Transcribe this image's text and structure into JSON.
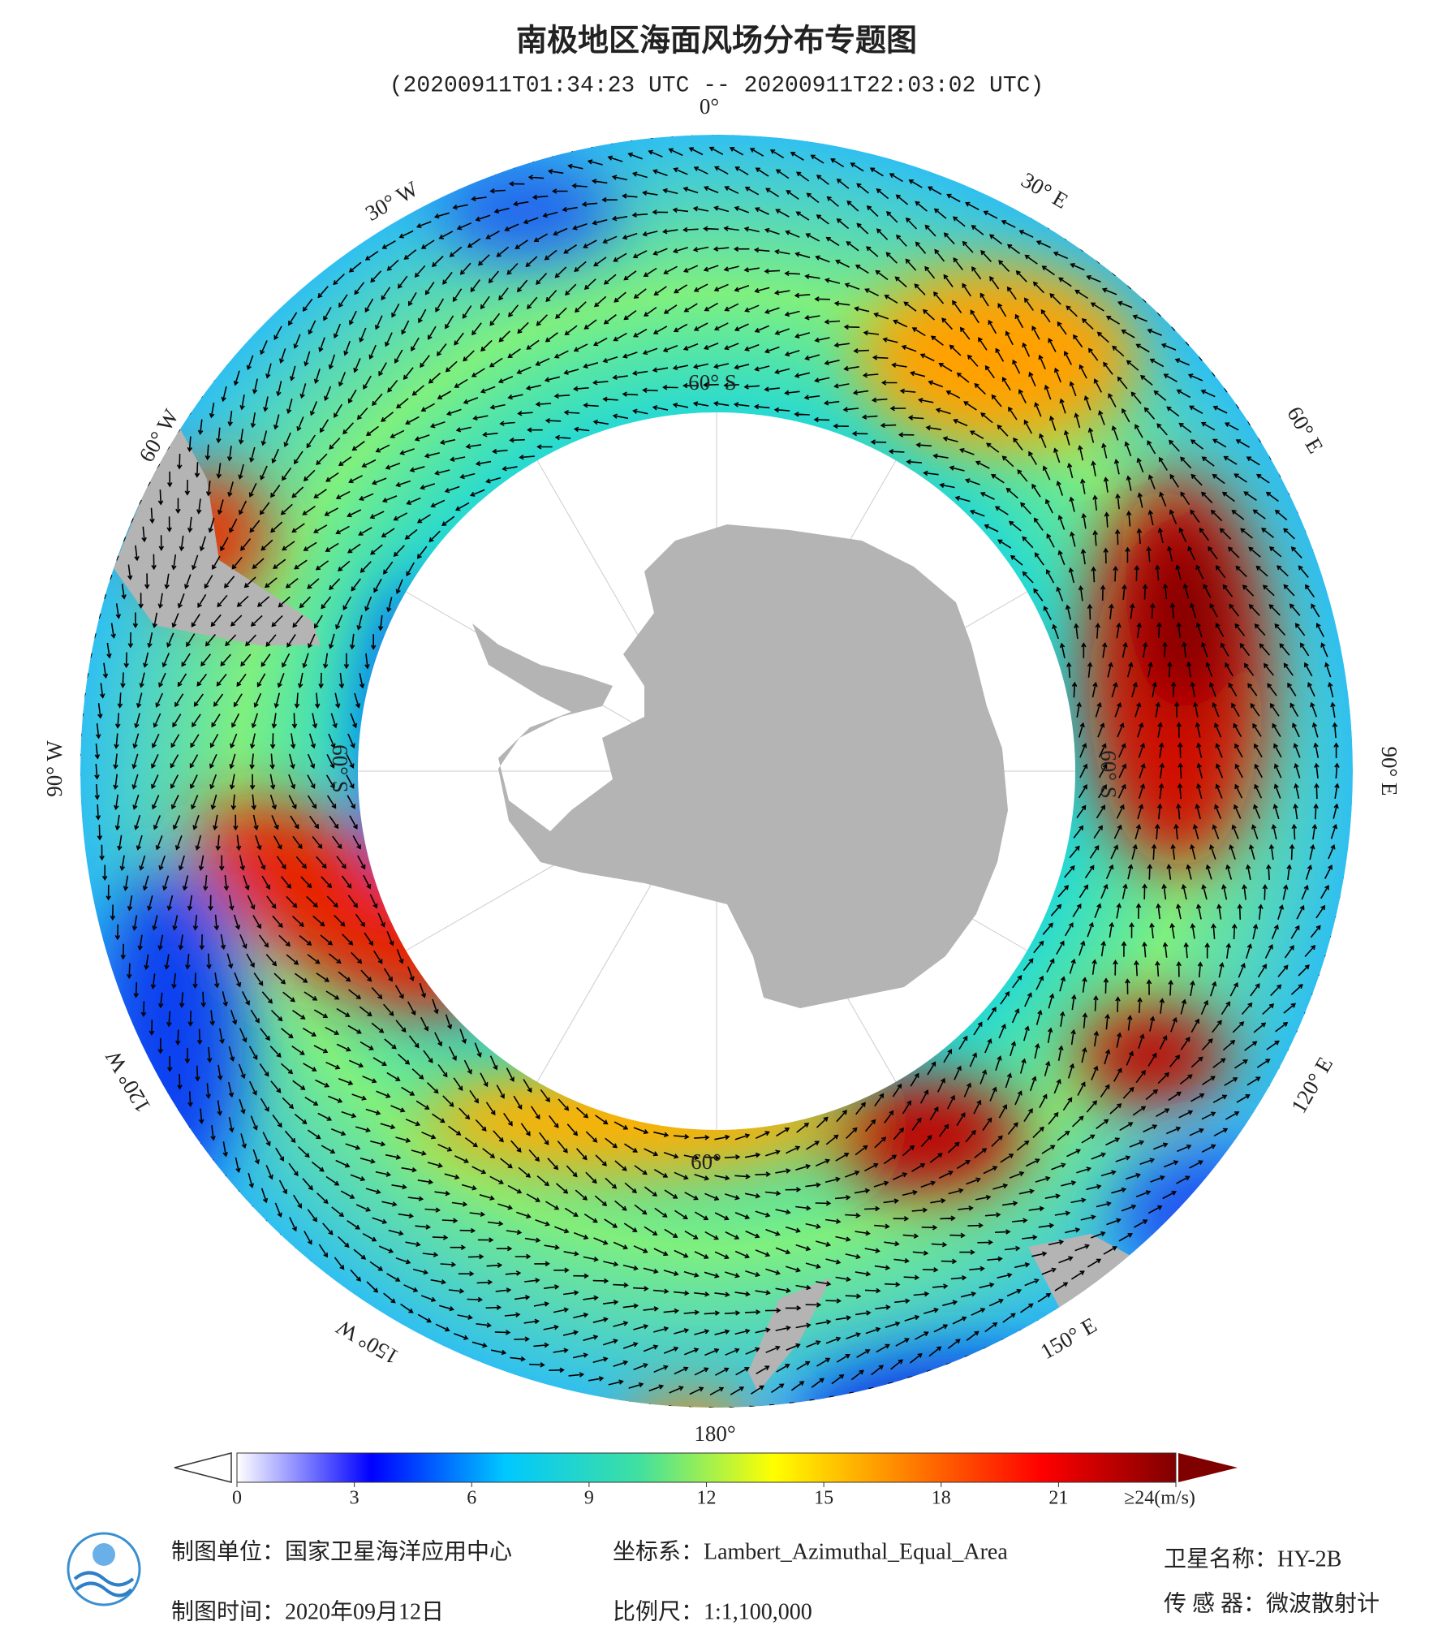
{
  "header": {
    "title": "南极地区海面风场分布专题图",
    "subtitle": "(20200911T01:34:23 UTC -- 20200911T22:03:02 UTC)"
  },
  "map": {
    "labels": [
      "0°",
      "30° E",
      "60° E",
      "90° E",
      "120° E",
      "150° E",
      "180°",
      "150° W",
      "120° W",
      "90° W",
      "60° W",
      "30° W",
      "60° S",
      "60° S",
      "60° S",
      "60°"
    ]
  },
  "colorbar": {
    "colors": [
      "#ffffff",
      "#0000ff",
      "#00c8ff",
      "#40e0a0",
      "#ffff00",
      "#ff8000",
      "#ff0000",
      "#800000"
    ],
    "lim": [
      0,
      24
    ],
    "ticks": [
      0,
      3,
      6,
      9,
      12,
      15,
      18,
      21,
      {
        "value": 24,
        "label": "≥24(m/s)"
      }
    ]
  },
  "footer": {
    "unit": "制图单位：国家卫星海洋应用中心",
    "time": "制图时间：2020年09月12日",
    "crs": "坐标系：Lambert_Azimuthal_Equal_Area",
    "scale": "比例尺：1:1,100,000",
    "satellite": "卫星名称：HY-2B",
    "sensor": "传 感 器：微波散射计"
  }
}
